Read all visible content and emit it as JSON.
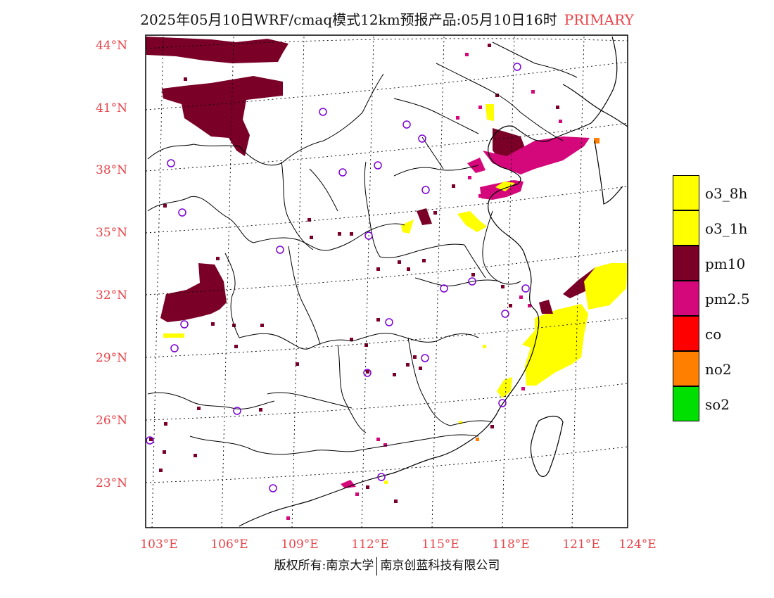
{
  "title": {
    "text": "2025年05月10日WRF/cmaq模式12km预报产品:05月10日16时",
    "pollutant_label": "PRIMARY"
  },
  "axes": {
    "lat_labels": [
      "44°N",
      "41°N",
      "38°N",
      "35°N",
      "32°N",
      "29°N",
      "26°N",
      "23°N"
    ],
    "lon_labels": [
      "103°E",
      "106°E",
      "109°E",
      "112°E",
      "115°E",
      "118°E",
      "121°E",
      "124°E"
    ]
  },
  "legend": [
    {
      "label": "o3_8h",
      "color": "#ffff00"
    },
    {
      "label": "o3_1h",
      "color": "#ffff00"
    },
    {
      "label": "pm10",
      "color": "#7a0028"
    },
    {
      "label": "pm2.5",
      "color": "#d4087a"
    },
    {
      "label": "co",
      "color": "#ff0000"
    },
    {
      "label": "no2",
      "color": "#ff7f00"
    },
    {
      "label": "so2",
      "color": "#00e000"
    }
  ],
  "credit": {
    "left": "版权所有:南京大学",
    "right": "南京创蓝科技有限公司"
  },
  "colors": {
    "axis_label": "#e8444a",
    "station_marker": "#7b00d4"
  }
}
